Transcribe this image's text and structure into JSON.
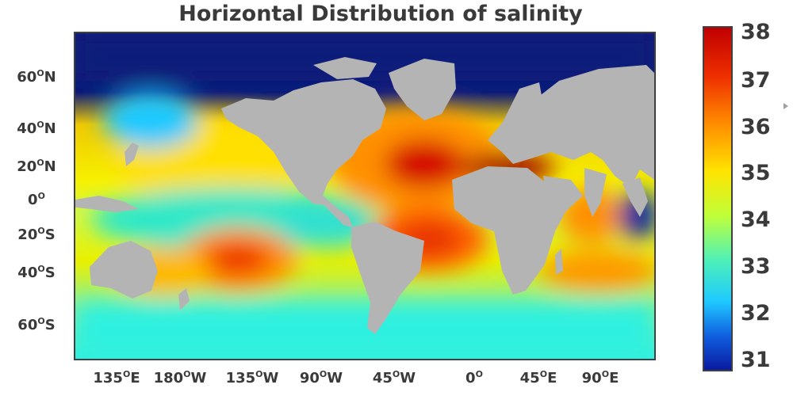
{
  "title": "Horizontal Distribution of salinity",
  "latitude_labels": [
    "60ON",
    "40ON",
    "20ON",
    "0O",
    "20OS",
    "40OS",
    "60OS"
  ],
  "longitude_labels": [
    "135OE",
    "180OW",
    "135OW",
    "90OW",
    "45OW",
    "0O",
    "45OE",
    "90OE"
  ],
  "colorbar": {
    "labels": [
      "38",
      "37",
      "36",
      "35",
      "34",
      "33",
      "32",
      "31"
    ],
    "colors": [
      "#c00000",
      "#ee2e00",
      "#ff8c00",
      "#ffe400",
      "#bfff3a",
      "#4df0b8",
      "#1fc9ff",
      "#1060e0",
      "#0a1aa0"
    ]
  },
  "colors": {
    "land": "#b4b4b4",
    "polar_ocean": "#0b1b7a"
  }
}
